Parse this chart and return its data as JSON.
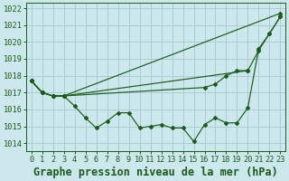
{
  "title": "Graphe pression niveau de la mer (hPa)",
  "bg_color": "#cce8ec",
  "grid_color": "#aacdd4",
  "line_color": "#1a5c1a",
  "ylim": [
    1013.5,
    1022.3
  ],
  "yticks": [
    1014,
    1015,
    1016,
    1017,
    1018,
    1019,
    1020,
    1021,
    1022
  ],
  "hours": [
    0,
    1,
    2,
    3,
    4,
    5,
    6,
    7,
    8,
    9,
    10,
    11,
    12,
    13,
    14,
    15,
    16,
    17,
    18,
    19,
    20,
    21,
    22,
    23
  ],
  "xtick_labels": [
    "0",
    "1",
    "2",
    "3",
    "4",
    "5",
    "6",
    "7",
    "8",
    "9",
    "10",
    "11",
    "12",
    "13",
    "14",
    "15",
    "16",
    "17",
    "18",
    "19",
    "20",
    "21",
    "22",
    "23"
  ],
  "s1_x": [
    0,
    1,
    2,
    3,
    4,
    5,
    6,
    7,
    8,
    9,
    10,
    11,
    12,
    13,
    14,
    15,
    16,
    17,
    18,
    19,
    20,
    21,
    22,
    23
  ],
  "s1_y": [
    1017.7,
    1017.0,
    1016.8,
    1016.8,
    1016.2,
    1015.5,
    1014.9,
    1015.3,
    1015.8,
    1015.8,
    1014.9,
    1015.0,
    1015.1,
    1014.9,
    1014.9,
    1014.1,
    1015.1,
    1015.5,
    1015.2,
    1015.2,
    1016.1,
    1019.6,
    1020.5,
    1021.5
  ],
  "s2_x": [
    0,
    1,
    2,
    3,
    23
  ],
  "s2_y": [
    1017.7,
    1017.0,
    1016.8,
    1016.8,
    1021.7
  ],
  "s3_x": [
    0,
    1,
    2,
    3,
    20,
    21,
    22,
    23
  ],
  "s3_y": [
    1017.7,
    1017.0,
    1016.8,
    1016.8,
    1018.3,
    1019.5,
    1020.5,
    1021.5
  ],
  "s4_x": [
    0,
    1,
    2,
    3,
    16,
    17,
    18,
    19,
    20
  ],
  "s4_y": [
    1017.7,
    1017.0,
    1016.8,
    1016.8,
    1017.3,
    1017.5,
    1018.0,
    1018.3,
    1018.3
  ],
  "title_fontsize": 8.5,
  "tick_fontsize": 6.2
}
